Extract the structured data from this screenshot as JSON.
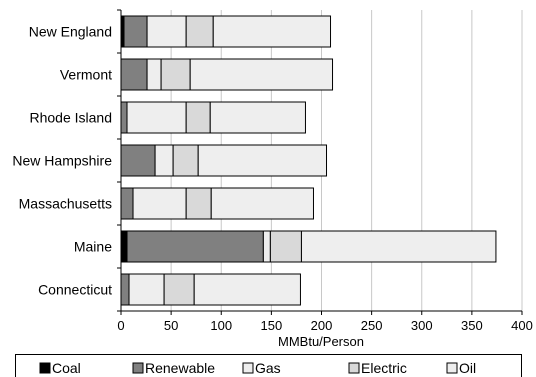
{
  "chart_data": {
    "type": "bar",
    "orientation": "horizontal",
    "stacked": true,
    "categories": [
      "New England",
      "Vermont",
      "Rhode Island",
      "New Hampshire",
      "Massachusetts",
      "Maine",
      "Connecticut"
    ],
    "series": [
      {
        "name": "Coal",
        "color": "#000000",
        "values": [
          3,
          0,
          0,
          0,
          0,
          6,
          0
        ]
      },
      {
        "name": "Renewable",
        "color": "#808080",
        "values": [
          23,
          26,
          6,
          34,
          12,
          136,
          8
        ]
      },
      {
        "name": "Gas",
        "color": "#eeeeee",
        "values": [
          39,
          14,
          59,
          18,
          53,
          7,
          35
        ]
      },
      {
        "name": "Electric",
        "color": "#d9d9d9",
        "values": [
          27,
          29,
          24,
          25,
          25,
          31,
          30
        ]
      },
      {
        "name": "Oil",
        "color": "#eeeeee",
        "values": [
          117,
          142,
          95,
          128,
          102,
          194,
          106
        ]
      }
    ],
    "title": "",
    "xlabel": "MMBtu/Person",
    "ylabel": "",
    "xlim": [
      0,
      400
    ],
    "xticks": [
      0,
      50,
      100,
      150,
      200,
      250,
      300,
      350,
      400
    ],
    "grid": "vertical",
    "legend_position": "bottom"
  }
}
